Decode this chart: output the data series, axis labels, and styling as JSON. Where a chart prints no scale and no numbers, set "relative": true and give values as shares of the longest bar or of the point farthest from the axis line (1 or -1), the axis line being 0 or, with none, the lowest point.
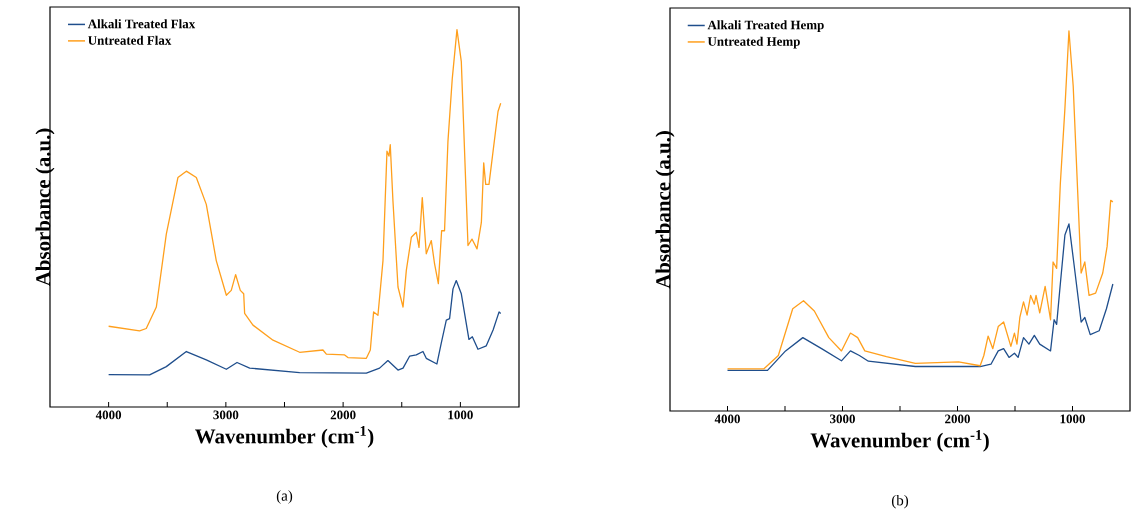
{
  "chart_data": [
    {
      "type": "line",
      "relative": true,
      "xlabel": "Wavenumber (cm$^{-1}$)",
      "ylabel": "Absorbance (a.u.)",
      "annotations": [
        "(a)"
      ],
      "xlim": [
        4500,
        500
      ],
      "xticks": [
        4000,
        {
          "value": 3500,
          "label": null
        },
        3000,
        {
          "value": 2500,
          "label": null
        },
        2000,
        {
          "value": 1500,
          "label": null
        },
        1000
      ],
      "tick_labels": "x",
      "legend": "top left",
      "line_style": "solid",
      "series": [
        {
          "name": "Alkali Treated Flax",
          "color": "#1f4e8c",
          "x": [
            4000,
            3650,
            3508,
            3337,
            3167,
            2996,
            2905,
            2797,
            2371,
            1802,
            1689,
            1618,
            1532,
            1489,
            1432,
            1376,
            1319,
            1291,
            1200,
            1163,
            1120,
            1092,
            1063,
            1035,
            992,
            927,
            898,
            850,
            779,
            721,
            670,
            656
          ],
          "values": [
            0.086,
            0.085,
            0.107,
            0.147,
            0.125,
            0.1,
            0.118,
            0.103,
            0.091,
            0.09,
            0.103,
            0.123,
            0.098,
            0.103,
            0.135,
            0.138,
            0.147,
            0.129,
            0.114,
            0.169,
            0.23,
            0.234,
            0.313,
            0.335,
            0.3,
            0.179,
            0.186,
            0.153,
            0.162,
            0.204,
            0.252,
            0.248
          ]
        },
        {
          "name": "Untreated Flax",
          "color": "#ff9f1c",
          "x": [
            4000,
            3736,
            3679,
            3593,
            3508,
            3409,
            3337,
            3252,
            3167,
            3082,
            2996,
            2954,
            2917,
            2877,
            2848,
            2840,
            2769,
            2598,
            2371,
            2172,
            2143,
            1987,
            1959,
            1802,
            1768,
            1740,
            1703,
            1660,
            1626,
            1609,
            1598,
            1575,
            1532,
            1489,
            1461,
            1418,
            1376,
            1353,
            1325,
            1291,
            1248,
            1220,
            1188,
            1160,
            1135,
            1106,
            1069,
            1029,
            992,
            935,
            901,
            858,
            821,
            801,
            784,
            756,
            721,
            679,
            656
          ],
          "values": [
            0.214,
            0.202,
            0.208,
            0.265,
            0.458,
            0.608,
            0.625,
            0.608,
            0.537,
            0.388,
            0.296,
            0.309,
            0.351,
            0.309,
            0.3,
            0.248,
            0.217,
            0.177,
            0.145,
            0.151,
            0.14,
            0.138,
            0.131,
            0.129,
            0.151,
            0.252,
            0.243,
            0.388,
            0.678,
            0.665,
            0.695,
            0.546,
            0.318,
            0.265,
            0.362,
            0.45,
            0.463,
            0.423,
            0.555,
            0.406,
            0.441,
            0.379,
            0.327,
            0.467,
            0.467,
            0.704,
            0.871,
            1.0,
            0.915,
            0.428,
            0.445,
            0.419,
            0.489,
            0.647,
            0.59,
            0.59,
            0.678,
            0.783,
            0.805
          ]
        }
      ]
    },
    {
      "type": "line",
      "relative": true,
      "xlabel": "Wavenumber (cm$^{-1}$)",
      "ylabel": "Absorbance (a.u.)",
      "annotations": [
        "(b)"
      ],
      "xlim": [
        4500,
        500
      ],
      "xticks": [
        4000,
        {
          "value": 3500,
          "label": null
        },
        3000,
        {
          "value": 2500,
          "label": null
        },
        2000,
        {
          "value": 1500,
          "label": null
        },
        1000
      ],
      "tick_labels": "x",
      "legend": "top left",
      "line_style": "solid",
      "series": [
        {
          "name": "Alkali Treated Hemp",
          "color": "#1f4e8c",
          "x": [
            4000,
            3652,
            3495,
            3345,
            3182,
            3009,
            2931,
            2853,
            2775,
            2367,
            1803,
            1709,
            1646,
            1599,
            1552,
            1505,
            1473,
            1426,
            1379,
            1332,
            1285,
            1191,
            1160,
            1138,
            1106,
            1066,
            1031,
            987,
            925,
            893,
            846,
            768,
            705,
            649
          ],
          "values": [
            0.107,
            0.107,
            0.158,
            0.193,
            0.164,
            0.132,
            0.158,
            0.146,
            0.131,
            0.117,
            0.117,
            0.123,
            0.158,
            0.164,
            0.141,
            0.152,
            0.141,
            0.193,
            0.176,
            0.199,
            0.176,
            0.158,
            0.24,
            0.228,
            0.334,
            0.463,
            0.492,
            0.386,
            0.234,
            0.246,
            0.201,
            0.211,
            0.269,
            0.334
          ]
        },
        {
          "name": "Untreated Hemp",
          "color": "#ff9f1c",
          "x": [
            4000,
            3683,
            3558,
            3433,
            3339,
            3245,
            3119,
            3009,
            2931,
            2868,
            2806,
            2618,
            2367,
            1991,
            1803,
            1771,
            1734,
            1693,
            1646,
            1599,
            1536,
            1505,
            1483,
            1458,
            1426,
            1395,
            1364,
            1332,
            1317,
            1285,
            1238,
            1191,
            1169,
            1138,
            1106,
            1066,
            1031,
            994,
            925,
            893,
            856,
            799,
            737,
            699,
            668,
            649
          ],
          "values": [
            0.111,
            0.111,
            0.146,
            0.269,
            0.29,
            0.263,
            0.193,
            0.158,
            0.205,
            0.193,
            0.158,
            0.143,
            0.125,
            0.129,
            0.119,
            0.146,
            0.197,
            0.164,
            0.222,
            0.234,
            0.17,
            0.205,
            0.176,
            0.246,
            0.287,
            0.252,
            0.304,
            0.281,
            0.304,
            0.258,
            0.328,
            0.24,
            0.392,
            0.375,
            0.597,
            0.796,
            1.0,
            0.855,
            0.363,
            0.392,
            0.304,
            0.31,
            0.363,
            0.433,
            0.554,
            0.55
          ]
        }
      ]
    }
  ]
}
